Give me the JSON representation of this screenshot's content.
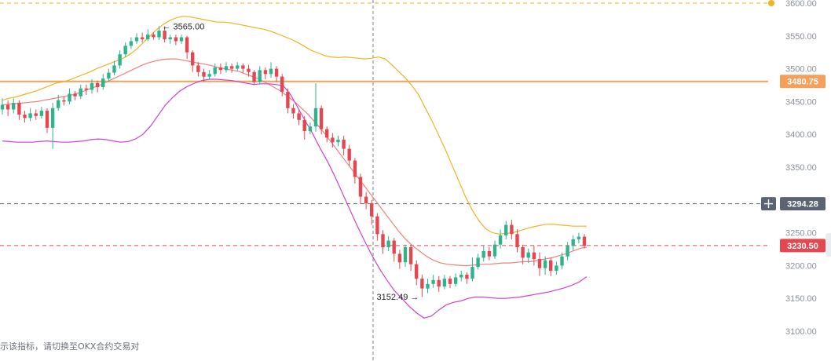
{
  "footer_notice": "示该指标，请切换至OKX合约交易对",
  "colors": {
    "up": "#2fb38a",
    "down": "#e4474f",
    "boll_upper": "#f0b323",
    "boll_mid": "#f08080",
    "boll_lower": "#cc44cc",
    "line_3480": "#f5a05a",
    "tag_3294": "#5b6470",
    "tag_3230": "#e4474f",
    "top_dot": "#f0b323"
  },
  "chart_data": {
    "type": "candlestick",
    "title": "",
    "xlabel": "",
    "ylabel": "",
    "ylim": [
      3090,
      3612
    ],
    "y_ticks": [
      3100,
      3150,
      3200,
      3250,
      3300,
      3350,
      3400,
      3450,
      3500,
      3550,
      3600
    ],
    "y_tick_labels": [
      "3100.00",
      "3150.00",
      "3200.00",
      "3250.00",
      "3300.00",
      "3350.00",
      "3400.00",
      "3450.00",
      "3500.00",
      "3550.00",
      "3600.00"
    ],
    "grid": false,
    "candles": [
      [
        3438,
        3445,
        3430,
        3455
      ],
      [
        3445,
        3438,
        3428,
        3452
      ],
      [
        3438,
        3448,
        3432,
        3455
      ],
      [
        3448,
        3430,
        3422,
        3452
      ],
      [
        3430,
        3425,
        3418,
        3436
      ],
      [
        3425,
        3432,
        3420,
        3440
      ],
      [
        3432,
        3428,
        3422,
        3438
      ],
      [
        3428,
        3436,
        3424,
        3442
      ],
      [
        3436,
        3410,
        3402,
        3440
      ],
      [
        3410,
        3440,
        3378,
        3448
      ],
      [
        3440,
        3452,
        3436,
        3460
      ],
      [
        3452,
        3450,
        3444,
        3458
      ],
      [
        3450,
        3462,
        3446,
        3470
      ],
      [
        3462,
        3458,
        3452,
        3466
      ],
      [
        3458,
        3470,
        3454,
        3476
      ],
      [
        3470,
        3468,
        3460,
        3476
      ],
      [
        3468,
        3478,
        3462,
        3484
      ],
      [
        3478,
        3472,
        3464,
        3482
      ],
      [
        3472,
        3485,
        3468,
        3492
      ],
      [
        3485,
        3494,
        3480,
        3500
      ],
      [
        3494,
        3505,
        3490,
        3512
      ],
      [
        3505,
        3522,
        3500,
        3528
      ],
      [
        3522,
        3535,
        3518,
        3540
      ],
      [
        3535,
        3542,
        3530,
        3548
      ],
      [
        3542,
        3548,
        3538,
        3554
      ],
      [
        3548,
        3545,
        3540,
        3555
      ],
      [
        3545,
        3552,
        3542,
        3560
      ],
      [
        3552,
        3548,
        3544,
        3556
      ],
      [
        3548,
        3558,
        3544,
        3565
      ],
      [
        3558,
        3545,
        3540,
        3565
      ],
      [
        3545,
        3548,
        3538,
        3552
      ],
      [
        3548,
        3542,
        3536,
        3552
      ],
      [
        3542,
        3548,
        3538,
        3552
      ],
      [
        3548,
        3525,
        3515,
        3550
      ],
      [
        3525,
        3505,
        3495,
        3528
      ],
      [
        3505,
        3495,
        3488,
        3510
      ],
      [
        3495,
        3488,
        3480,
        3500
      ],
      [
        3488,
        3492,
        3484,
        3498
      ],
      [
        3492,
        3502,
        3488,
        3508
      ],
      [
        3502,
        3498,
        3492,
        3508
      ],
      [
        3498,
        3504,
        3494,
        3510
      ],
      [
        3504,
        3500,
        3494,
        3508
      ],
      [
        3500,
        3505,
        3496,
        3510
      ],
      [
        3505,
        3500,
        3494,
        3508
      ],
      [
        3500,
        3495,
        3488,
        3506
      ],
      [
        3495,
        3480,
        3475,
        3498
      ],
      [
        3480,
        3498,
        3476,
        3504
      ],
      [
        3498,
        3492,
        3484,
        3502
      ],
      [
        3492,
        3500,
        3486,
        3510
      ],
      [
        3500,
        3488,
        3480,
        3504
      ],
      [
        3488,
        3465,
        3458,
        3492
      ],
      [
        3465,
        3440,
        3432,
        3470
      ],
      [
        3440,
        3432,
        3424,
        3446
      ],
      [
        3432,
        3422,
        3414,
        3438
      ],
      [
        3422,
        3405,
        3392,
        3428
      ],
      [
        3405,
        3412,
        3400,
        3418
      ],
      [
        3412,
        3440,
        3404,
        3478
      ],
      [
        3440,
        3408,
        3400,
        3444
      ],
      [
        3408,
        3395,
        3388,
        3412
      ],
      [
        3395,
        3388,
        3380,
        3402
      ],
      [
        3388,
        3392,
        3382,
        3398
      ],
      [
        3392,
        3378,
        3368,
        3398
      ],
      [
        3378,
        3360,
        3352,
        3384
      ],
      [
        3360,
        3335,
        3325,
        3364
      ],
      [
        3335,
        3305,
        3294,
        3340
      ],
      [
        3305,
        3295,
        3286,
        3312
      ],
      [
        3295,
        3275,
        3262,
        3300
      ],
      [
        3275,
        3248,
        3238,
        3280
      ],
      [
        3248,
        3228,
        3218,
        3254
      ],
      [
        3228,
        3238,
        3222,
        3245
      ],
      [
        3238,
        3218,
        3206,
        3242
      ],
      [
        3218,
        3205,
        3195,
        3224
      ],
      [
        3205,
        3228,
        3198,
        3232
      ],
      [
        3228,
        3202,
        3192,
        3232
      ],
      [
        3202,
        3180,
        3170,
        3208
      ],
      [
        3180,
        3165,
        3152,
        3186
      ],
      [
        3165,
        3172,
        3158,
        3180
      ],
      [
        3172,
        3178,
        3166,
        3186
      ],
      [
        3178,
        3168,
        3160,
        3184
      ],
      [
        3168,
        3180,
        3164,
        3186
      ],
      [
        3180,
        3172,
        3166,
        3184
      ],
      [
        3172,
        3182,
        3168,
        3188
      ],
      [
        3182,
        3186,
        3176,
        3192
      ],
      [
        3186,
        3180,
        3172,
        3190
      ],
      [
        3180,
        3198,
        3176,
        3212
      ],
      [
        3198,
        3212,
        3194,
        3218
      ],
      [
        3212,
        3222,
        3206,
        3230
      ],
      [
        3222,
        3214,
        3208,
        3228
      ],
      [
        3214,
        3232,
        3210,
        3238
      ],
      [
        3232,
        3246,
        3226,
        3255
      ],
      [
        3246,
        3262,
        3240,
        3268
      ],
      [
        3262,
        3248,
        3240,
        3270
      ],
      [
        3248,
        3228,
        3220,
        3255
      ],
      [
        3228,
        3212,
        3202,
        3232
      ],
      [
        3212,
        3220,
        3204,
        3226
      ],
      [
        3220,
        3210,
        3200,
        3230
      ],
      [
        3210,
        3196,
        3184,
        3220
      ],
      [
        3196,
        3208,
        3186,
        3214
      ],
      [
        3208,
        3192,
        3184,
        3212
      ],
      [
        3192,
        3200,
        3186,
        3206
      ],
      [
        3200,
        3214,
        3194,
        3220
      ],
      [
        3214,
        3230,
        3208,
        3236
      ],
      [
        3230,
        3240,
        3222,
        3246
      ],
      [
        3240,
        3244,
        3234,
        3250
      ],
      [
        3244,
        3230,
        3226,
        3248
      ]
    ],
    "boll_upper": [
      3452,
      3455,
      3457,
      3460,
      3463,
      3466,
      3470,
      3474,
      3478,
      3480,
      3483,
      3487,
      3491,
      3495,
      3500,
      3504,
      3508,
      3512,
      3516,
      3522,
      3530,
      3540,
      3550,
      3560,
      3568,
      3574,
      3578,
      3580,
      3579,
      3577,
      3575,
      3573,
      3571,
      3571,
      3570,
      3568,
      3566,
      3564,
      3562,
      3560,
      3557,
      3553,
      3549,
      3545,
      3540,
      3534,
      3528,
      3524,
      3520,
      3518,
      3517,
      3518,
      3517,
      3516,
      3515,
      3516,
      3518,
      3515,
      3506,
      3496,
      3486,
      3474,
      3460,
      3440,
      3420,
      3398,
      3376,
      3352,
      3328,
      3304,
      3284,
      3268,
      3256,
      3250,
      3248,
      3249,
      3250,
      3253,
      3256,
      3259,
      3261,
      3263,
      3263,
      3262,
      3261,
      3260,
      3260,
      3260
    ],
    "boll_mid": [
      3445,
      3446,
      3447,
      3448,
      3449,
      3450,
      3452,
      3454,
      3456,
      3458,
      3460,
      3463,
      3467,
      3471,
      3475,
      3480,
      3485,
      3490,
      3495,
      3500,
      3505,
      3509,
      3512,
      3514,
      3515,
      3515,
      3513,
      3511,
      3509,
      3507,
      3505,
      3502,
      3500,
      3498,
      3496,
      3492,
      3488,
      3484,
      3478,
      3472,
      3466,
      3458,
      3450,
      3440,
      3430,
      3418,
      3406,
      3392,
      3378,
      3364,
      3350,
      3336,
      3322,
      3308,
      3294,
      3280,
      3266,
      3252,
      3240,
      3230,
      3222,
      3214,
      3208,
      3204,
      3202,
      3201,
      3200,
      3200,
      3201,
      3202,
      3202,
      3203,
      3204,
      3204,
      3205,
      3206,
      3206,
      3208,
      3210,
      3212,
      3215,
      3218,
      3222,
      3226,
      3228
    ],
    "boll_lower": [
      3390,
      3389,
      3388,
      3388,
      3388,
      3389,
      3390,
      3389,
      3388,
      3388,
      3389,
      3390,
      3392,
      3393,
      3392,
      3390,
      3388,
      3389,
      3393,
      3400,
      3412,
      3428,
      3444,
      3456,
      3466,
      3473,
      3478,
      3482,
      3484,
      3484,
      3483,
      3482,
      3480,
      3478,
      3476,
      3477,
      3477,
      3476,
      3474,
      3460,
      3440,
      3420,
      3400,
      3378,
      3358,
      3335,
      3310,
      3285,
      3260,
      3237,
      3215,
      3195,
      3178,
      3162,
      3150,
      3138,
      3128,
      3120,
      3123,
      3132,
      3140,
      3144,
      3146,
      3150,
      3152,
      3152,
      3151,
      3150,
      3150,
      3151,
      3152,
      3154,
      3156,
      3158,
      3160,
      3163,
      3166,
      3170,
      3175,
      3183
    ],
    "annotations": [
      {
        "label": "3565.00",
        "value": 3565,
        "kind": "high"
      },
      {
        "label": "3152.49",
        "value": 3152.49,
        "kind": "low"
      }
    ],
    "price_lines": [
      {
        "value": 3600,
        "label": "3600.00",
        "style": "dashed",
        "color_key": "top_dot"
      },
      {
        "value": 3480.75,
        "label": "3480.75",
        "style": "solid",
        "color_key": "line_3480"
      },
      {
        "value": 3294.28,
        "label": "3294.28",
        "style": "dashed",
        "color_key": "tag_3294",
        "crosshair": true
      },
      {
        "value": 3230.5,
        "label": "3230.50",
        "style": "dashed",
        "color_key": "tag_3230"
      }
    ]
  }
}
